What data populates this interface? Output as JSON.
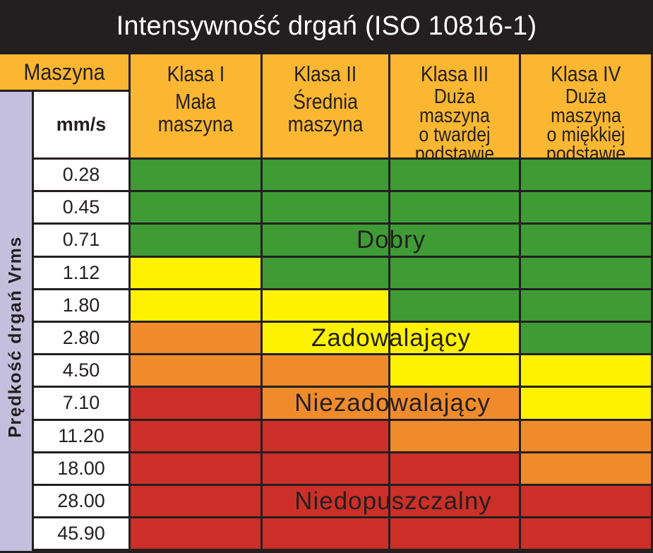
{
  "title": "Intensywność drgań (ISO 10816-1)",
  "header": {
    "machine_label": "Maszyna",
    "unit_label": "mm/s",
    "side_label": "Prędkość drgań Vrms",
    "classes": [
      {
        "name": "Klasa I",
        "description": "Mała\nmaszyna"
      },
      {
        "name": "Klasa II",
        "description": "Średnia\nmaszyna"
      },
      {
        "name": "Klasa III",
        "description": "Duża maszyna\no twardej\npodstawie"
      },
      {
        "name": "Klasa IV",
        "description": "Duża maszyna\no miękkiej\npodstawie"
      }
    ]
  },
  "chart_data": {
    "type": "heatmap",
    "title": "Intensywność drgań (ISO 10816-1)",
    "ylabel": "Prędkość drgań Vrms",
    "yunit": "mm/s",
    "rows": [
      "0.28",
      "0.45",
      "0.71",
      "1.12",
      "1.80",
      "2.80",
      "4.50",
      "7.10",
      "11.20",
      "18.00",
      "28.00",
      "45.90"
    ],
    "columns": [
      "Klasa I",
      "Klasa II",
      "Klasa III",
      "Klasa IV"
    ],
    "zones": [
      {
        "id": "A",
        "label": "Dobry",
        "color": "#3f9c35"
      },
      {
        "id": "B",
        "label": "Zadowalający",
        "color": "#fef200"
      },
      {
        "id": "C",
        "label": "Niezadowalający",
        "color": "#f08b2b"
      },
      {
        "id": "D",
        "label": "Niedopuszczalny",
        "color": "#cc2f27"
      }
    ],
    "matrix": [
      [
        "A",
        "A",
        "A",
        "A"
      ],
      [
        "A",
        "A",
        "A",
        "A"
      ],
      [
        "A",
        "A",
        "A",
        "A"
      ],
      [
        "B",
        "A",
        "A",
        "A"
      ],
      [
        "B",
        "B",
        "A",
        "A"
      ],
      [
        "C",
        "B",
        "B",
        "A"
      ],
      [
        "C",
        "C",
        "B",
        "B"
      ],
      [
        "D",
        "C",
        "C",
        "B"
      ],
      [
        "D",
        "D",
        "C",
        "C"
      ],
      [
        "D",
        "D",
        "D",
        "C"
      ],
      [
        "D",
        "D",
        "D",
        "D"
      ],
      [
        "D",
        "D",
        "D",
        "D"
      ]
    ]
  },
  "colors": {
    "header": "#fbb731",
    "side": "#c4bfdc",
    "border": "#231f20"
  }
}
